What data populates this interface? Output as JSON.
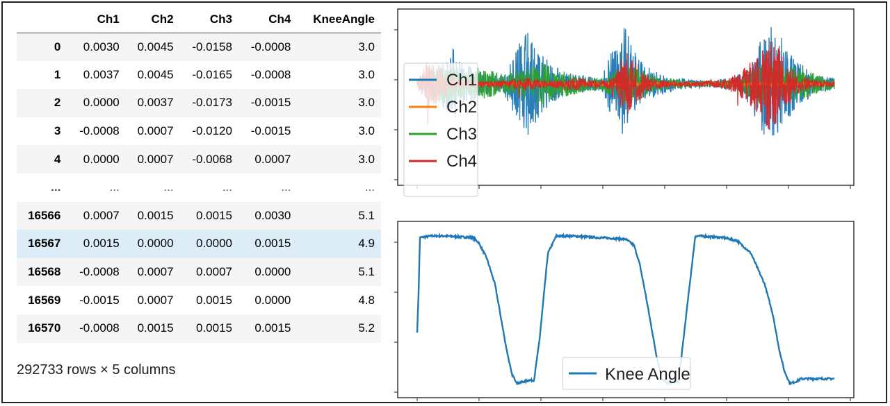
{
  "dataframe": {
    "columns": [
      "",
      "Ch1",
      "Ch2",
      "Ch3",
      "Ch4",
      "KneeAngle"
    ],
    "rows": [
      {
        "index": "0",
        "cells": [
          "0.0030",
          "0.0045",
          "-0.0158",
          "-0.0008",
          "3.0"
        ]
      },
      {
        "index": "1",
        "cells": [
          "0.0037",
          "0.0045",
          "-0.0165",
          "-0.0008",
          "3.0"
        ]
      },
      {
        "index": "2",
        "cells": [
          "0.0000",
          "0.0037",
          "-0.0173",
          "-0.0015",
          "3.0"
        ]
      },
      {
        "index": "3",
        "cells": [
          "-0.0008",
          "0.0007",
          "-0.0120",
          "-0.0015",
          "3.0"
        ]
      },
      {
        "index": "4",
        "cells": [
          "0.0000",
          "0.0007",
          "-0.0068",
          "0.0007",
          "3.0"
        ]
      },
      {
        "index": "...",
        "cells": [
          "...",
          "...",
          "...",
          "...",
          "..."
        ]
      },
      {
        "index": "16566",
        "cells": [
          "0.0007",
          "0.0015",
          "0.0015",
          "0.0030",
          "5.1"
        ]
      },
      {
        "index": "16567",
        "cells": [
          "0.0015",
          "0.0000",
          "0.0000",
          "0.0015",
          "4.9"
        ]
      },
      {
        "index": "16568",
        "cells": [
          "-0.0008",
          "0.0007",
          "0.0007",
          "0.0000",
          "5.1"
        ]
      },
      {
        "index": "16569",
        "cells": [
          "-0.0015",
          "0.0007",
          "0.0015",
          "0.0000",
          "4.8"
        ]
      },
      {
        "index": "16570",
        "cells": [
          "-0.0008",
          "0.0015",
          "0.0015",
          "0.0015",
          "5.2"
        ]
      }
    ],
    "shape_text": "292733 rows × 5 columns"
  },
  "chart_data": [
    {
      "type": "line",
      "title": "",
      "series": [
        {
          "name": "Ch1",
          "color": "#1f77b4",
          "amplitude_envelope": [
            0.05,
            0.08,
            0.35,
            0.55,
            0.3,
            0.2,
            0.15,
            0.12,
            0.55,
            0.8,
            0.5,
            0.3,
            0.2,
            0.15,
            0.12,
            0.1,
            0.6,
            0.9,
            0.4,
            0.25,
            0.15,
            0.1,
            0.08,
            0.06,
            0.05,
            0.08,
            0.12,
            0.3,
            0.7,
            1.0,
            0.6,
            0.35,
            0.2,
            0.12,
            0.1
          ]
        },
        {
          "name": "Ch2",
          "color": "#ff7f0e",
          "amplitude_envelope": [
            0.02,
            0.02,
            0.03,
            0.03,
            0.02,
            0.02,
            0.02,
            0.02,
            0.03,
            0.03,
            0.02,
            0.02,
            0.02,
            0.02,
            0.02,
            0.02,
            0.03,
            0.03,
            0.02,
            0.02,
            0.02,
            0.02,
            0.02,
            0.02,
            0.02,
            0.02,
            0.02,
            0.02,
            0.03,
            0.03,
            0.02,
            0.02,
            0.02,
            0.02,
            0.02
          ]
        },
        {
          "name": "Ch3",
          "color": "#2ca02c",
          "amplitude_envelope": [
            0.05,
            0.3,
            0.3,
            0.25,
            0.2,
            0.25,
            0.2,
            0.15,
            0.2,
            0.25,
            0.35,
            0.25,
            0.2,
            0.15,
            0.1,
            0.1,
            0.2,
            0.3,
            0.25,
            0.15,
            0.1,
            0.08,
            0.06,
            0.05,
            0.05,
            0.06,
            0.1,
            0.2,
            0.3,
            0.35,
            0.3,
            0.25,
            0.2,
            0.12,
            0.08
          ]
        },
        {
          "name": "Ch4",
          "color": "#d62728",
          "amplitude_envelope": [
            0.05,
            0.4,
            0.25,
            0.1,
            0.08,
            0.06,
            0.05,
            0.05,
            0.08,
            0.1,
            0.06,
            0.05,
            0.08,
            0.1,
            0.06,
            0.05,
            0.1,
            0.5,
            0.3,
            0.1,
            0.05,
            0.04,
            0.04,
            0.04,
            0.05,
            0.08,
            0.15,
            0.3,
            0.5,
            0.8,
            0.4,
            0.15,
            0.08,
            0.05,
            0.04
          ]
        }
      ],
      "legend": {
        "position": "left",
        "entries": [
          "Ch1",
          "Ch2",
          "Ch3",
          "Ch4"
        ]
      }
    },
    {
      "type": "line",
      "title": "",
      "x": [
        0,
        0.5,
        1,
        5,
        10,
        15,
        20,
        22,
        25,
        28,
        30,
        32,
        34,
        36,
        38,
        40,
        42,
        44,
        47,
        50,
        55,
        60,
        65,
        70,
        75,
        78,
        80,
        82,
        84,
        86,
        88,
        90,
        92,
        94,
        97,
        100,
        102,
        105,
        110,
        115,
        120,
        125,
        128,
        130,
        132,
        134,
        136,
        138,
        140,
        142,
        144,
        146,
        148,
        150
      ],
      "series": [
        {
          "name": "Knee Angle",
          "color": "#1f77b4",
          "values": [
            0.35,
            0.6,
            0.95,
            0.96,
            0.96,
            0.955,
            0.95,
            0.92,
            0.82,
            0.65,
            0.45,
            0.25,
            0.08,
            0.02,
            0.03,
            0.04,
            0.04,
            0.3,
            0.85,
            0.96,
            0.96,
            0.955,
            0.95,
            0.945,
            0.94,
            0.9,
            0.78,
            0.6,
            0.4,
            0.2,
            0.05,
            0.02,
            0.03,
            0.03,
            0.5,
            0.96,
            0.96,
            0.955,
            0.95,
            0.93,
            0.85,
            0.65,
            0.45,
            0.25,
            0.1,
            0.02,
            0.03,
            0.05,
            0.05,
            0.05,
            0.05,
            0.05,
            0.05,
            0.05
          ]
        }
      ],
      "legend": {
        "position": "bottom-center",
        "entries": [
          "Knee Angle"
        ]
      }
    }
  ]
}
